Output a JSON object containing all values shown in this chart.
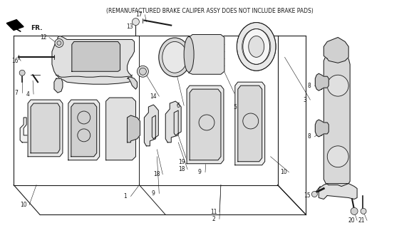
{
  "subtitle": "(REMANUFACTURED BRAKE CALIPER ASSY DOES NOT INCLUDE BRAKE PADS)",
  "background_color": "#ffffff",
  "line_color": "#1a1a1a",
  "text_color": "#1a1a1a",
  "fig_width": 5.88,
  "fig_height": 3.2,
  "dpi": 100
}
